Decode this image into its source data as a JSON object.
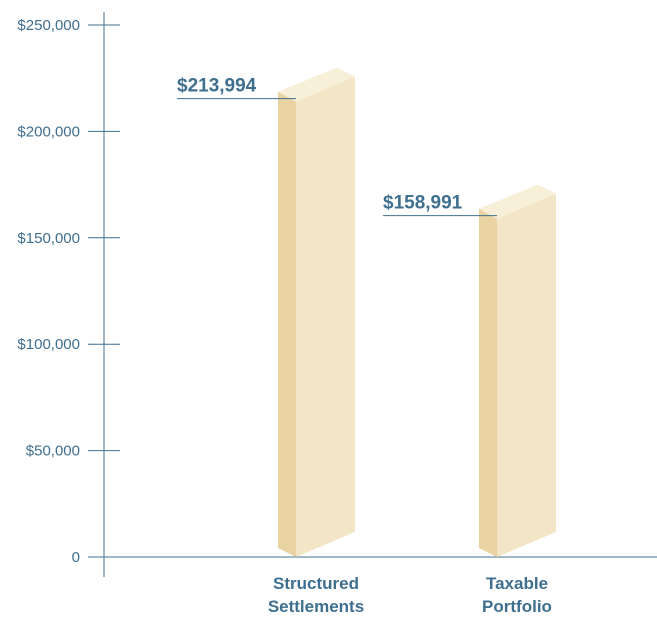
{
  "chart_data": {
    "type": "bar",
    "title": "",
    "xlabel": "",
    "ylabel": "",
    "categories": [
      [
        "Structured",
        "Settlements"
      ],
      [
        "Taxable",
        "Portfolio"
      ]
    ],
    "values": [
      213994,
      158991
    ],
    "data_labels": [
      "$213,994",
      "$158,991"
    ],
    "ylim": [
      0,
      250000
    ],
    "yticks": [
      0,
      50000,
      100000,
      150000,
      200000,
      250000
    ],
    "ytick_labels": [
      "0",
      "$50,000",
      "$100,000",
      "$150,000",
      "$200,000",
      "$250,000"
    ],
    "grid": false,
    "colors": {
      "axis": "#3f6f8f",
      "text": "#3f6f8f",
      "bar_front": "#f3e6c6",
      "bar_side": "#e9d3a3",
      "bar_top": "#f8efd9"
    }
  }
}
